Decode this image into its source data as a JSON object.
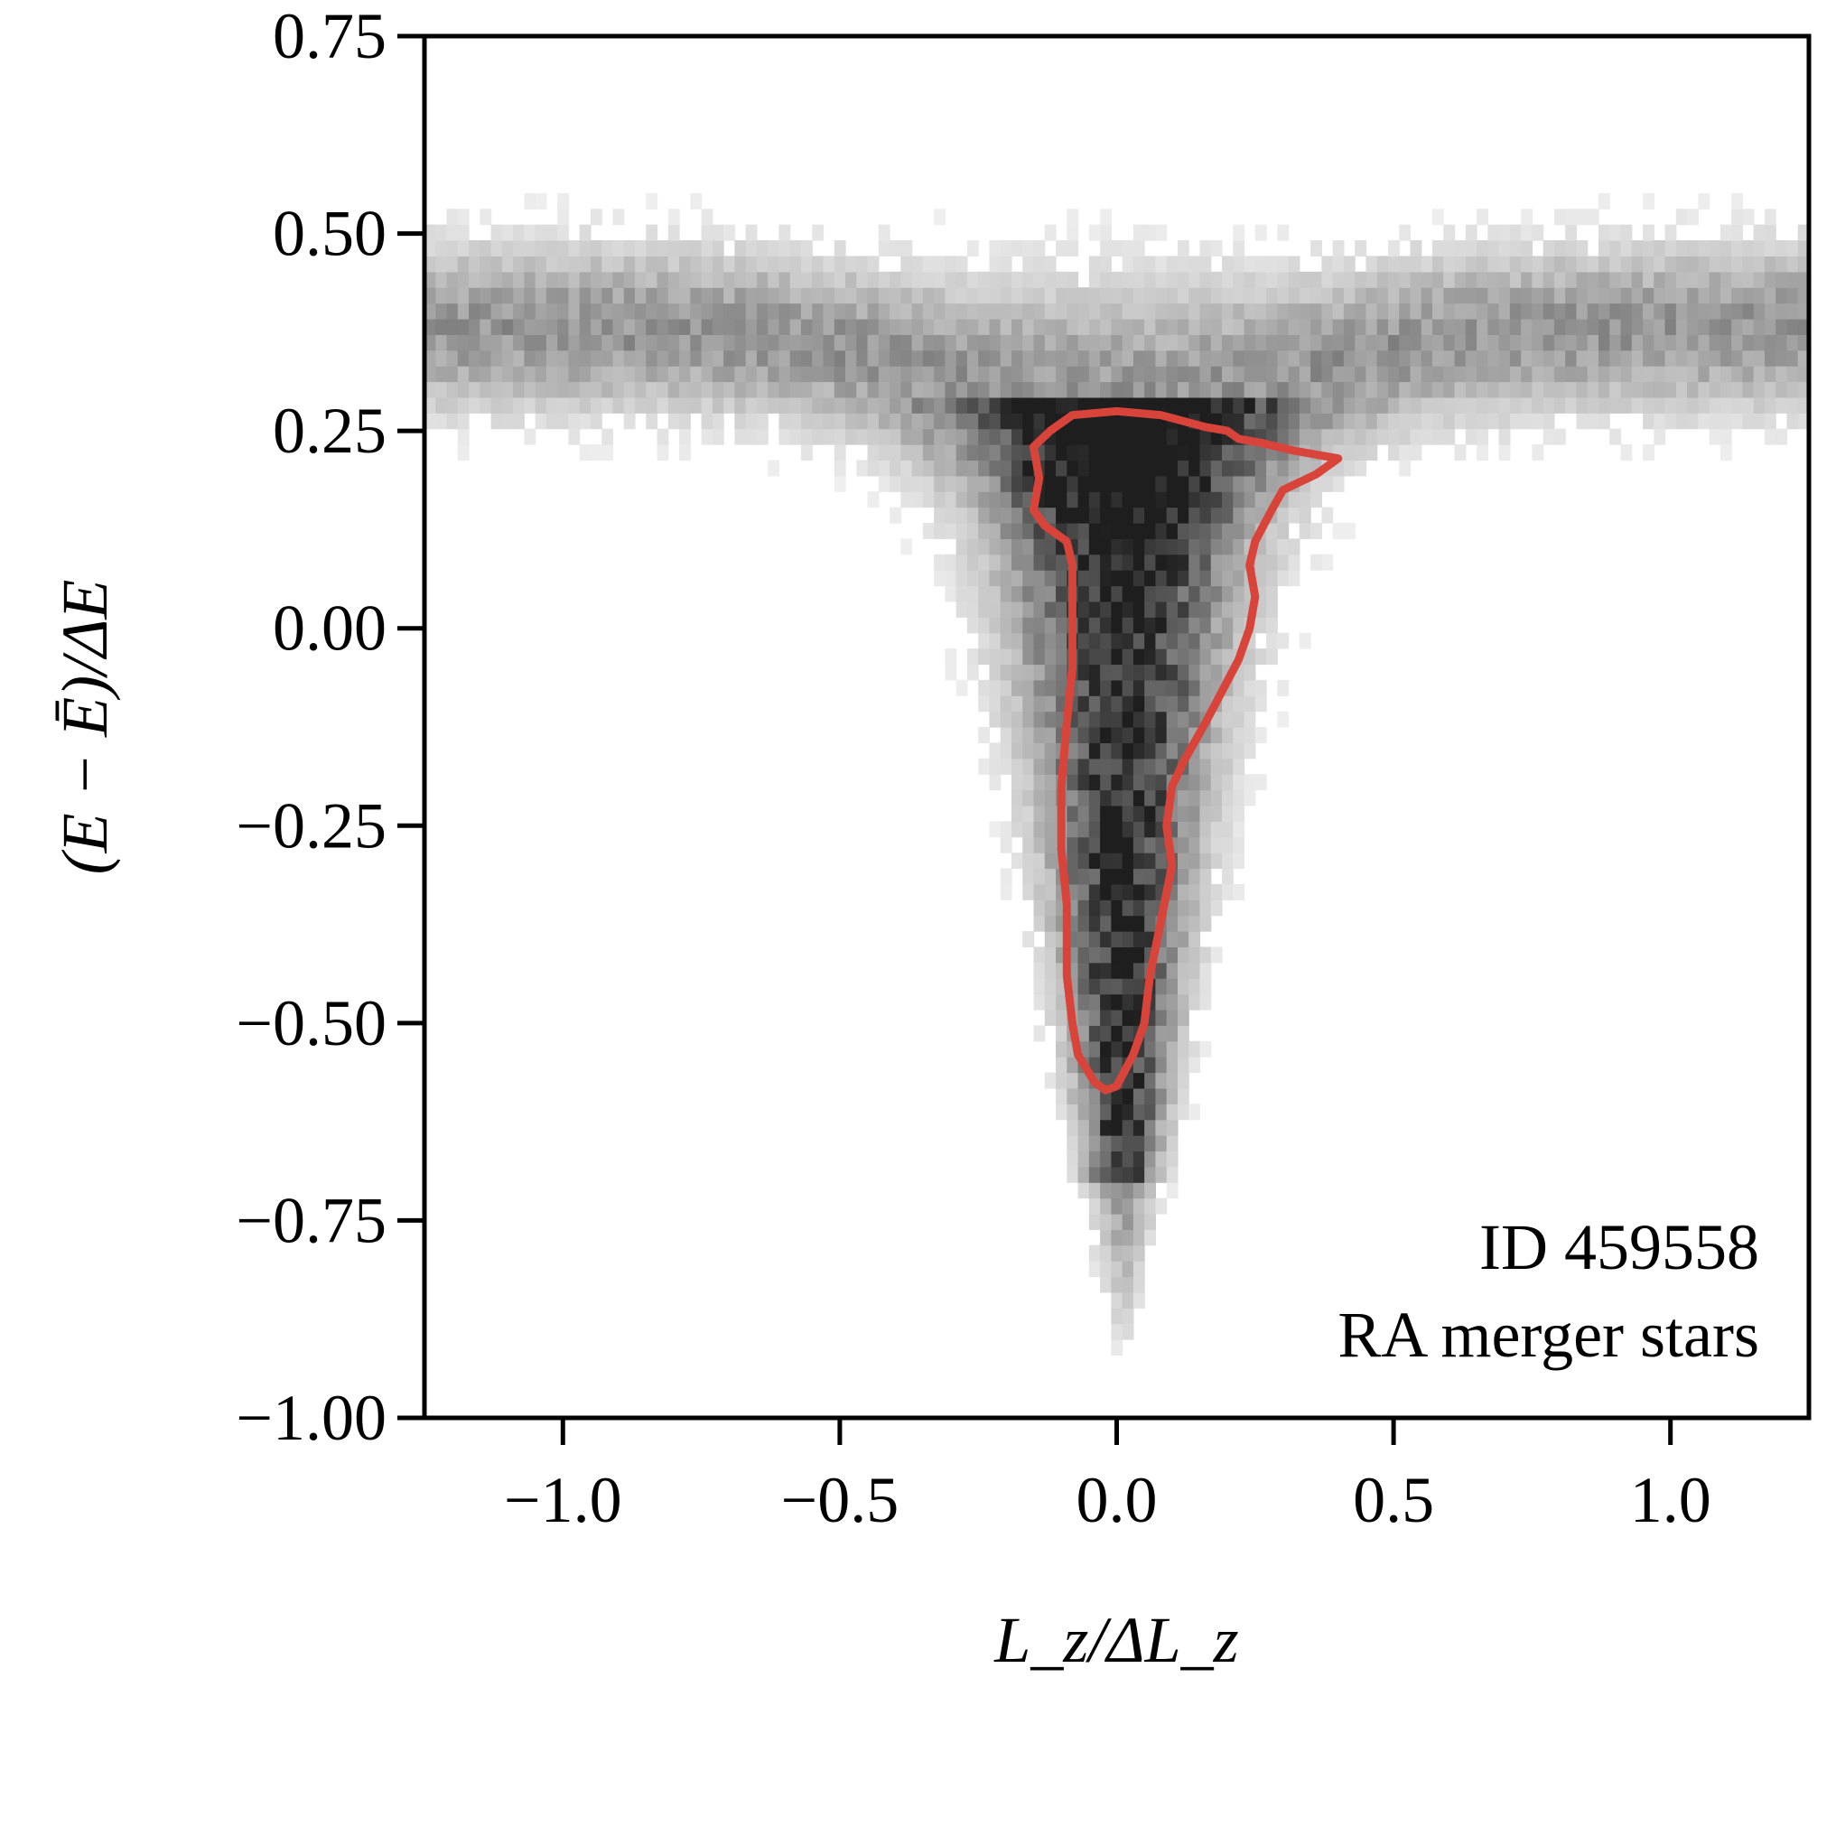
{
  "chart_data": {
    "type": "heatmap",
    "xlabel": "L_z/ΔL_z",
    "ylabel": "(E − Ē)/ΔE",
    "xlim": [
      -1.25,
      1.25
    ],
    "ylim": [
      -1.0,
      0.75
    ],
    "x_ticks": [
      -1.0,
      -0.5,
      0.0,
      0.5,
      1.0
    ],
    "x_tick_labels": [
      "−1.0",
      "−0.5",
      "0.0",
      "0.5",
      "1.0"
    ],
    "y_ticks": [
      0.75,
      0.5,
      0.25,
      0.0,
      -0.25,
      -0.5,
      -0.75,
      -1.0
    ],
    "y_tick_labels": [
      "0.75",
      "0.50",
      "0.25",
      "0.00",
      "−0.25",
      "−0.50",
      "−0.75",
      "−1.00"
    ],
    "grid": false,
    "colormap": "greys",
    "annotation": [
      "ID 459558",
      "RA merger stars"
    ],
    "annotation_position": "bottom-right",
    "contour_color": "#d9443a",
    "contour": [
      [
        -0.12,
        0.25
      ],
      [
        -0.08,
        0.27
      ],
      [
        0.0,
        0.275
      ],
      [
        0.08,
        0.27
      ],
      [
        0.16,
        0.255
      ],
      [
        0.2,
        0.25
      ],
      [
        0.22,
        0.24
      ],
      [
        0.26,
        0.235
      ],
      [
        0.32,
        0.225
      ],
      [
        0.4,
        0.215
      ],
      [
        0.36,
        0.195
      ],
      [
        0.3,
        0.175
      ],
      [
        0.28,
        0.15
      ],
      [
        0.25,
        0.11
      ],
      [
        0.24,
        0.08
      ],
      [
        0.25,
        0.04
      ],
      [
        0.24,
        0.0
      ],
      [
        0.22,
        -0.04
      ],
      [
        0.19,
        -0.08
      ],
      [
        0.16,
        -0.12
      ],
      [
        0.12,
        -0.17
      ],
      [
        0.1,
        -0.2
      ],
      [
        0.09,
        -0.25
      ],
      [
        0.1,
        -0.3
      ],
      [
        0.08,
        -0.37
      ],
      [
        0.06,
        -0.44
      ],
      [
        0.05,
        -0.5
      ],
      [
        0.03,
        -0.54
      ],
      [
        0.0,
        -0.58
      ],
      [
        -0.02,
        -0.585
      ],
      [
        -0.04,
        -0.575
      ],
      [
        -0.07,
        -0.54
      ],
      [
        -0.08,
        -0.5
      ],
      [
        -0.09,
        -0.44
      ],
      [
        -0.09,
        -0.35
      ],
      [
        -0.1,
        -0.28
      ],
      [
        -0.1,
        -0.2
      ],
      [
        -0.09,
        -0.12
      ],
      [
        -0.08,
        -0.05
      ],
      [
        -0.08,
        0.03
      ],
      [
        -0.08,
        0.08
      ],
      [
        -0.09,
        0.11
      ],
      [
        -0.13,
        0.13
      ],
      [
        -0.15,
        0.15
      ],
      [
        -0.14,
        0.19
      ],
      [
        -0.15,
        0.23
      ],
      [
        -0.12,
        0.25
      ]
    ]
  }
}
